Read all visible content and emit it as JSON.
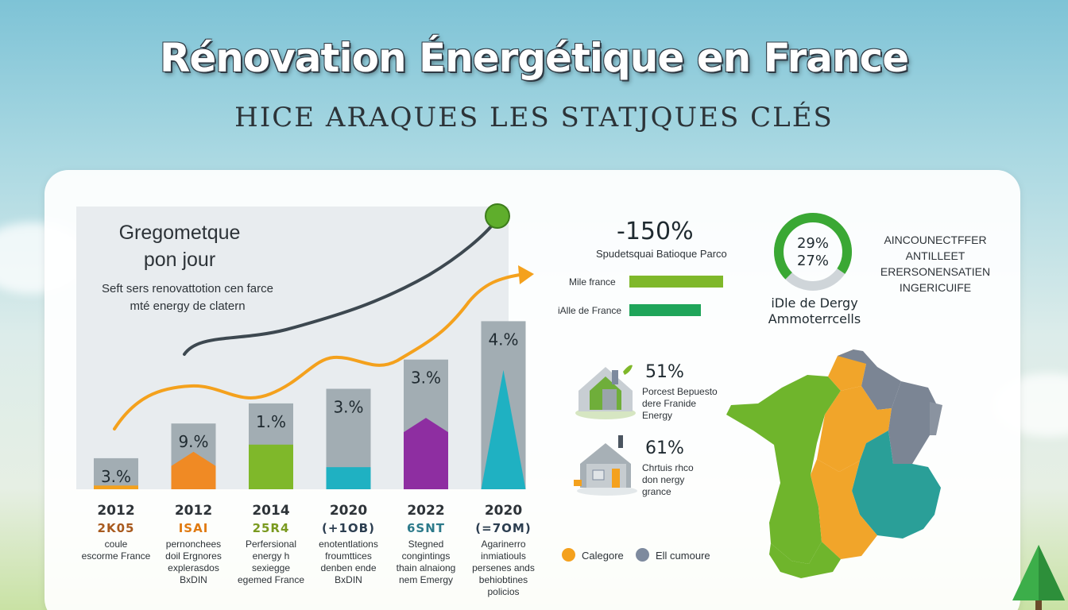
{
  "header": {
    "title": "Rénovation Énergétique en France",
    "subtitle": "HICE ARAQUES  LES STATJQUES CLÉS"
  },
  "colors": {
    "orange": "#f4a11d",
    "green": "#7fb82a",
    "darkgreen": "#1fa55a",
    "teal": "#1fb1c2",
    "purple": "#8e2ea1",
    "gray": "#a2adb3",
    "slate": "#7d8a9e",
    "curve_dark": "#3d4850"
  },
  "chart_data": {
    "type": "bar",
    "title": "Gregometque\npon jour",
    "subtitle": "Seft sers renovattotion cen farce\nmté energy de clatern",
    "categories": [
      "2012",
      "2012",
      "2014",
      "2020",
      "2022",
      "2020"
    ],
    "values": [
      "3.%",
      "9.%",
      "1.%",
      "3.%",
      "3.%",
      "4.%"
    ],
    "codes": [
      "2K05",
      "ISAI",
      "25R4",
      "(+1OB)",
      "6SNT",
      "(=7OM)"
    ],
    "code_colors": [
      "#a85a1e",
      "#e07a10",
      "#7a9a1f",
      "#2c3e50",
      "#2c7a8a",
      "#2c3e50"
    ],
    "descriptions": [
      "coule\nescorme France",
      "pernonchees\ndoil Ergnores\nexplerasdos\nBxDIN",
      "Perfersional\nenergy h\nsexiegge\negemed France",
      "enotentlations\nfroumttices\ndenben ende\nBxDIN",
      "Stegned\ncongintings\nthain alnaiong\nnem Emergy",
      "Agarinerro\ninmiatiouls\npersenes ands\nbehiobtines\npolicios"
    ],
    "bar_level": [
      0.17,
      0.36,
      0.47,
      0.55,
      0.71,
      0.92
    ],
    "fill_level": [
      0.12,
      0.57,
      0.52,
      0.22,
      0.55,
      0.71
    ],
    "fill_colors": [
      "#f4a11d",
      "#f08a24",
      "#7fb82a",
      "#1fb1c2",
      "#8e2ea1",
      "#1fb1c2"
    ],
    "fill_shapes": [
      "rect",
      "house",
      "rect",
      "rect",
      "house",
      "peak"
    ]
  },
  "stats": {
    "big_value": "-150%",
    "big_label": "Spudetsquai Batioque Parco",
    "bars": [
      {
        "label": "Mile france",
        "color": "#7fb82a",
        "level": 1.0
      },
      {
        "label": "iAlle de France",
        "color": "#1fa55a",
        "level": 0.76
      }
    ]
  },
  "donut": {
    "line1": "29%",
    "line2": "27%",
    "caption": "iDle de Dergy\nAmmoterrcells",
    "fill": 0.72,
    "caps": [
      "AINCOUNECTFFER",
      "ANTILLEET",
      "ERERSONENSATIEN",
      "INGERICUIFE"
    ]
  },
  "tiles": [
    {
      "value": "51%",
      "desc": "Porcest Bepuesto\ndere Franide\nEnergy"
    },
    {
      "value": "61%",
      "desc": "Chrtuis rhco\ndon nergy\ngrance"
    }
  ],
  "legend": [
    {
      "label": "Calegore",
      "color": "#f4a11d"
    },
    {
      "label": "Ell cumoure",
      "color": "#7d8a9e"
    }
  ]
}
